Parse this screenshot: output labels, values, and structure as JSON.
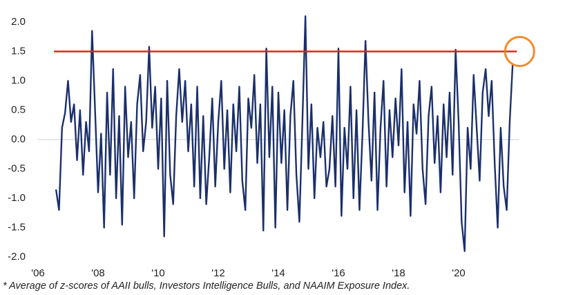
{
  "chart_data": {
    "type": "line",
    "x": [
      2006.6,
      2006.7,
      2006.8,
      2006.9,
      2007.0,
      2007.1,
      2007.2,
      2007.3,
      2007.4,
      2007.5,
      2007.6,
      2007.7,
      2007.8,
      2007.9,
      2008.0,
      2008.1,
      2008.2,
      2008.3,
      2008.4,
      2008.5,
      2008.6,
      2008.7,
      2008.8,
      2008.9,
      2009.0,
      2009.1,
      2009.2,
      2009.3,
      2009.4,
      2009.5,
      2009.6,
      2009.7,
      2009.8,
      2009.9,
      2010.0,
      2010.1,
      2010.2,
      2010.3,
      2010.4,
      2010.5,
      2010.6,
      2010.7,
      2010.8,
      2010.9,
      2011.0,
      2011.1,
      2011.2,
      2011.3,
      2011.4,
      2011.5,
      2011.6,
      2011.7,
      2011.8,
      2011.9,
      2012.0,
      2012.1,
      2012.2,
      2012.3,
      2012.4,
      2012.5,
      2012.6,
      2012.7,
      2012.8,
      2012.9,
      2013.0,
      2013.1,
      2013.2,
      2013.3,
      2013.4,
      2013.5,
      2013.6,
      2013.7,
      2013.8,
      2013.9,
      2014.0,
      2014.1,
      2014.2,
      2014.3,
      2014.4,
      2014.5,
      2014.6,
      2014.7,
      2014.8,
      2014.9,
      2015.0,
      2015.1,
      2015.2,
      2015.3,
      2015.4,
      2015.5,
      2015.6,
      2015.7,
      2015.8,
      2015.9,
      2016.0,
      2016.1,
      2016.2,
      2016.3,
      2016.4,
      2016.5,
      2016.6,
      2016.7,
      2016.8,
      2016.9,
      2017.0,
      2017.1,
      2017.2,
      2017.3,
      2017.4,
      2017.5,
      2017.6,
      2017.7,
      2017.8,
      2017.9,
      2018.0,
      2018.1,
      2018.2,
      2018.3,
      2018.4,
      2018.5,
      2018.6,
      2018.7,
      2018.8,
      2018.9,
      2019.0,
      2019.1,
      2019.2,
      2019.3,
      2019.4,
      2019.5,
      2019.6,
      2019.7,
      2019.8,
      2019.9,
      2020.0,
      2020.1,
      2020.2,
      2020.3,
      2020.4,
      2020.5,
      2020.6,
      2020.7,
      2020.8,
      2020.9,
      2021.0,
      2021.1,
      2021.2,
      2021.3,
      2021.4,
      2021.5,
      2021.6,
      2021.7,
      2021.8
    ],
    "series": [
      {
        "color": "#1b2f6b",
        "values": [
          -0.85,
          -1.2,
          0.2,
          0.45,
          1.0,
          0.3,
          0.6,
          -0.35,
          0.5,
          -0.6,
          0.3,
          -0.2,
          1.85,
          0.5,
          -0.9,
          0.1,
          -1.5,
          0.8,
          -0.6,
          1.2,
          -1.0,
          0.4,
          -1.45,
          0.9,
          -0.3,
          0.3,
          -1.0,
          0.6,
          1.1,
          -0.2,
          0.3,
          1.58,
          0.2,
          0.9,
          -0.5,
          0.7,
          -1.65,
          1.0,
          -0.6,
          -1.1,
          0.4,
          1.2,
          0.3,
          1.0,
          -0.2,
          0.6,
          -0.8,
          0.9,
          -1.0,
          0.4,
          -1.1,
          -0.3,
          0.7,
          -0.8,
          0.3,
          1.0,
          -0.5,
          0.5,
          -0.9,
          0.6,
          -0.2,
          0.9,
          -0.7,
          -1.2,
          0.7,
          0.2,
          1.1,
          -0.4,
          0.6,
          -1.55,
          1.55,
          -0.3,
          0.9,
          -1.5,
          0.8,
          -0.4,
          0.5,
          -1.2,
          0.4,
          1.0,
          -0.6,
          -1.4,
          0.3,
          2.1,
          -0.5,
          0.6,
          -1.0,
          0.2,
          -0.3,
          0.3,
          -0.8,
          -0.5,
          0.4,
          -0.8,
          1.55,
          -1.3,
          0.2,
          -0.5,
          0.9,
          -1.0,
          0.5,
          -1.2,
          0.1,
          1.68,
          0.3,
          -0.7,
          0.8,
          -1.2,
          0.2,
          1.0,
          -0.8,
          0.5,
          -0.3,
          0.7,
          -0.1,
          1.2,
          -0.9,
          0.3,
          -1.3,
          0.6,
          0.1,
          1.0,
          -0.5,
          -1.1,
          0.4,
          0.9,
          -0.4,
          0.4,
          -0.9,
          0.6,
          -0.3,
          0.8,
          -0.6,
          1.53,
          0.3,
          -1.4,
          -1.9,
          0.2,
          -0.5,
          1.1,
          0.2,
          -0.7,
          0.8,
          1.2,
          0.4,
          1.0,
          -0.4,
          -1.5,
          0.2,
          -0.8,
          -1.2,
          0.3,
          1.3
        ]
      }
    ],
    "threshold": {
      "value": 1.5,
      "color": "#e3231b"
    },
    "xlim": [
      2006,
      2022
    ],
    "xticks": [
      {
        "value": 2006,
        "label": "'06"
      },
      {
        "value": 2008,
        "label": "'08"
      },
      {
        "value": 2010,
        "label": "'10"
      },
      {
        "value": 2012,
        "label": "'12"
      },
      {
        "value": 2014,
        "label": "'14"
      },
      {
        "value": 2016,
        "label": "'16"
      },
      {
        "value": 2018,
        "label": "'18"
      },
      {
        "value": 2020,
        "label": "'20"
      }
    ],
    "ylim": [
      -2,
      2
    ],
    "yticks": [
      {
        "value": 2,
        "label": "2.0"
      },
      {
        "value": 1.5,
        "label": "1.5"
      },
      {
        "value": 1,
        "label": "1.0"
      },
      {
        "value": 0.5,
        "label": "0.5"
      },
      {
        "value": 0,
        "label": "0.0"
      },
      {
        "value": -0.5,
        "label": "-0.5"
      },
      {
        "value": -1,
        "label": "-1.0"
      },
      {
        "value": -1.5,
        "label": "-1.5"
      },
      {
        "value": -2,
        "label": "-2.0"
      }
    ],
    "grid": false,
    "footnote": "* Average of z-scores of AAII bulls, Investors Intelligence Bulls, and NAAIM Exposure Index."
  }
}
